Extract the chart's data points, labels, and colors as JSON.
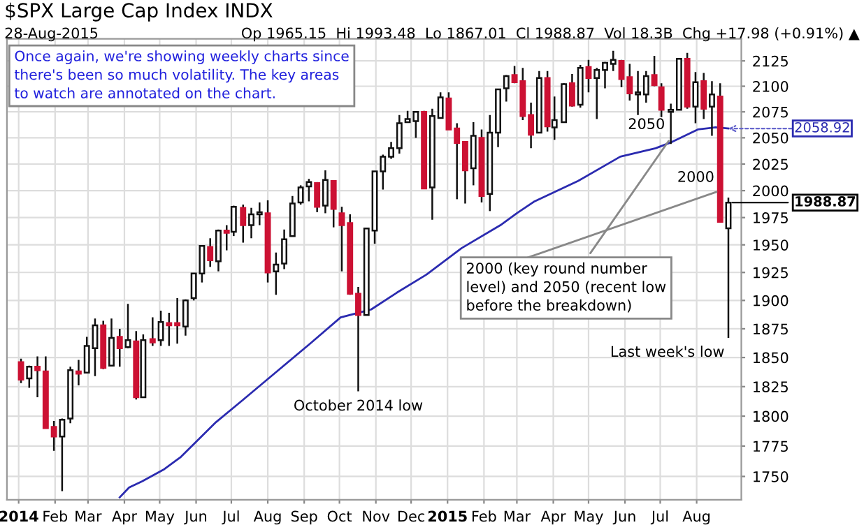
{
  "chart_data": {
    "type": "candlestick",
    "title": "$SPX Large Cap Index INDX",
    "subtitle": "28-Aug-2015",
    "annotations": [
      "Op 1965.15  Hi 1993.48  Lo 1867.01  Cl 1988.87  Vol 18.3B  Chg +17.98 (+0.91%) ▲",
      "Once again, we're showing weekly charts since\nthere's been so much volatility. The key areas\nto watch are annotated on the chart.",
      {
        "text": "2000 (key round number\nlevel) and 2050 (recent low\nbefore the breakdown)",
        "x": "2015-07-10",
        "y": 2050
      },
      {
        "text": "October 2014 low",
        "x": "2014-10-17",
        "y": 1820.7
      },
      {
        "text": "Last week's low",
        "x": "2015-08-28",
        "y": 1867.01
      },
      {
        "text": "2050",
        "x": "2015-07-10",
        "y": 2050
      },
      {
        "text": "2000",
        "x": "2015-08-21",
        "y": 2000
      },
      {
        "text": "2058.92",
        "x": "2015-08-28",
        "y": 2058.92
      },
      {
        "text": "1988.87",
        "x": "2015-08-28",
        "y": 1988.87
      }
    ],
    "x": [
      "2014-01-03",
      "2014-01-10",
      "2014-01-17",
      "2014-01-24",
      "2014-01-31",
      "2014-02-07",
      "2014-02-14",
      "2014-02-21",
      "2014-02-28",
      "2014-03-07",
      "2014-03-14",
      "2014-03-21",
      "2014-03-28",
      "2014-04-04",
      "2014-04-11",
      "2014-04-17",
      "2014-04-25",
      "2014-05-02",
      "2014-05-09",
      "2014-05-16",
      "2014-05-23",
      "2014-05-30",
      "2014-06-06",
      "2014-06-13",
      "2014-06-20",
      "2014-06-27",
      "2014-07-03",
      "2014-07-11",
      "2014-07-18",
      "2014-07-25",
      "2014-08-01",
      "2014-08-08",
      "2014-08-15",
      "2014-08-22",
      "2014-08-29",
      "2014-09-05",
      "2014-09-12",
      "2014-09-19",
      "2014-09-26",
      "2014-10-03",
      "2014-10-10",
      "2014-10-17",
      "2014-10-24",
      "2014-10-31",
      "2014-11-07",
      "2014-11-14",
      "2014-11-21",
      "2014-11-28",
      "2014-12-05",
      "2014-12-12",
      "2014-12-19",
      "2014-12-26",
      "2015-01-02",
      "2015-01-09",
      "2015-01-16",
      "2015-01-23",
      "2015-01-30",
      "2015-02-06",
      "2015-02-13",
      "2015-02-20",
      "2015-02-27",
      "2015-03-06",
      "2015-03-13",
      "2015-03-20",
      "2015-03-27",
      "2015-04-02",
      "2015-04-10",
      "2015-04-17",
      "2015-04-24",
      "2015-05-01",
      "2015-05-08",
      "2015-05-15",
      "2015-05-22",
      "2015-05-29",
      "2015-06-05",
      "2015-06-12",
      "2015-06-19",
      "2015-06-26",
      "2015-07-02",
      "2015-07-10",
      "2015-07-17",
      "2015-07-24",
      "2015-07-31",
      "2015-08-07",
      "2015-08-14",
      "2015-08-21",
      "2015-08-28"
    ],
    "ohlc": [
      [
        1846,
        1849,
        1828,
        1831
      ],
      [
        1832,
        1843,
        1824,
        1842
      ],
      [
        1842,
        1851,
        1816,
        1839
      ],
      [
        1838,
        1851,
        1790,
        1790
      ],
      [
        1791,
        1796,
        1771,
        1783
      ],
      [
        1783,
        1798,
        1738,
        1797
      ],
      [
        1798,
        1842,
        1794,
        1839
      ],
      [
        1838,
        1848,
        1826,
        1836
      ],
      [
        1837,
        1868,
        1837,
        1860
      ],
      [
        1858,
        1884,
        1834,
        1878
      ],
      [
        1878,
        1882,
        1840,
        1841
      ],
      [
        1843,
        1884,
        1843,
        1867
      ],
      [
        1868,
        1875,
        1842,
        1858
      ],
      [
        1859,
        1897,
        1858,
        1865
      ],
      [
        1864,
        1873,
        1814,
        1816
      ],
      [
        1816,
        1870,
        1816,
        1865
      ],
      [
        1866,
        1885,
        1860,
        1863
      ],
      [
        1865,
        1891,
        1860,
        1881
      ],
      [
        1880,
        1889,
        1860,
        1878
      ],
      [
        1880,
        1902,
        1862,
        1878
      ],
      [
        1877,
        1901,
        1869,
        1900
      ],
      [
        1902,
        1924,
        1900,
        1924
      ],
      [
        1924,
        1949,
        1916,
        1949
      ],
      [
        1948,
        1956,
        1930,
        1936
      ],
      [
        1935,
        1964,
        1926,
        1963
      ],
      [
        1963,
        1968,
        1945,
        1961
      ],
      [
        1962,
        1986,
        1958,
        1985
      ],
      [
        1984,
        1987,
        1952,
        1968
      ],
      [
        1968,
        1984,
        1956,
        1978
      ],
      [
        1978,
        1989,
        1968,
        1980
      ],
      [
        1979,
        1991,
        1916,
        1925
      ],
      [
        1926,
        1943,
        1905,
        1932
      ],
      [
        1933,
        1964,
        1928,
        1955
      ],
      [
        1958,
        1995,
        1958,
        1988
      ],
      [
        1989,
        2005,
        1987,
        2003
      ],
      [
        2004,
        2011,
        1990,
        2008
      ],
      [
        2007,
        2008,
        1980,
        1985
      ],
      [
        1986,
        2019,
        1979,
        2010
      ],
      [
        2009,
        2009,
        1966,
        1983
      ],
      [
        1979,
        1985,
        1926,
        1968
      ],
      [
        1970,
        1978,
        1905,
        1906
      ],
      [
        1906,
        1912,
        1821,
        1887
      ],
      [
        1887,
        1965,
        1887,
        1965
      ],
      [
        1963,
        2018,
        1951,
        2018
      ],
      [
        2018,
        2034,
        2001,
        2032
      ],
      [
        2032,
        2046,
        2030,
        2040
      ],
      [
        2040,
        2072,
        2035,
        2064
      ],
      [
        2065,
        2076,
        2065,
        2068
      ],
      [
        2066,
        2075,
        2050,
        2075
      ],
      [
        2075,
        2076,
        2002,
        2002
      ],
      [
        2003,
        2078,
        1973,
        2071
      ],
      [
        2069,
        2094,
        2069,
        2089
      ],
      [
        2088,
        2094,
        2058,
        2058
      ],
      [
        2059,
        2064,
        1992,
        2045
      ],
      [
        2046,
        2046,
        1988,
        2019
      ],
      [
        2021,
        2065,
        2005,
        2052
      ],
      [
        2050,
        2058,
        1989,
        1995
      ],
      [
        1997,
        2072,
        1981,
        2055
      ],
      [
        2055,
        2097,
        2041,
        2097
      ],
      [
        2098,
        2111,
        2085,
        2110
      ],
      [
        2111,
        2120,
        2103,
        2104
      ],
      [
        2105,
        2118,
        2067,
        2071
      ],
      [
        2072,
        2084,
        2040,
        2053
      ],
      [
        2055,
        2115,
        2055,
        2108
      ],
      [
        2108,
        2115,
        2056,
        2061
      ],
      [
        2060,
        2090,
        2048,
        2067
      ],
      [
        2065,
        2103,
        2065,
        2102
      ],
      [
        2103,
        2112,
        2080,
        2081
      ],
      [
        2082,
        2121,
        2079,
        2118
      ],
      [
        2119,
        2126,
        2094,
        2108
      ],
      [
        2108,
        2118,
        2068,
        2116
      ],
      [
        2116,
        2124,
        2098,
        2123
      ],
      [
        2122,
        2135,
        2115,
        2126
      ],
      [
        2125,
        2126,
        2099,
        2107
      ],
      [
        2109,
        2122,
        2086,
        2093
      ],
      [
        2092,
        2115,
        2072,
        2094
      ],
      [
        2092,
        2115,
        2084,
        2110
      ],
      [
        2111,
        2130,
        2100,
        2101
      ],
      [
        2099,
        2103,
        2057,
        2077
      ],
      [
        2075,
        2083,
        2044,
        2077
      ],
      [
        2077,
        2128,
        2077,
        2127
      ],
      [
        2127,
        2133,
        2078,
        2080
      ],
      [
        2080,
        2114,
        2064,
        2104
      ],
      [
        2105,
        2113,
        2068,
        2078
      ],
      [
        2080,
        2105,
        2052,
        2092
      ],
      [
        2090,
        2103,
        1971,
        1971
      ],
      [
        1965.15,
        1993.48,
        1867.01,
        1988.87
      ]
    ],
    "colors": [
      "#cc1133",
      "#ffffff",
      "#cc1133",
      "#cc1133",
      "#cc1133",
      "#ffffff",
      "#ffffff",
      "#cc1133",
      "#ffffff",
      "#ffffff",
      "#cc1133",
      "#ffffff",
      "#cc1133",
      "#ffffff",
      "#cc1133",
      "#ffffff",
      "#cc1133",
      "#ffffff",
      "#cc1133",
      "#cc1133",
      "#ffffff",
      "#ffffff",
      "#ffffff",
      "#cc1133",
      "#ffffff",
      "#cc1133",
      "#ffffff",
      "#cc1133",
      "#ffffff",
      "#ffffff",
      "#cc1133",
      "#ffffff",
      "#ffffff",
      "#ffffff",
      "#ffffff",
      "#ffffff",
      "#cc1133",
      "#ffffff",
      "#cc1133",
      "#cc1133",
      "#cc1133",
      "#cc1133",
      "#ffffff",
      "#ffffff",
      "#ffffff",
      "#ffffff",
      "#ffffff",
      "#ffffff",
      "#ffffff",
      "#cc1133",
      "#ffffff",
      "#ffffff",
      "#cc1133",
      "#cc1133",
      "#cc1133",
      "#ffffff",
      "#cc1133",
      "#ffffff",
      "#ffffff",
      "#ffffff",
      "#cc1133",
      "#cc1133",
      "#cc1133",
      "#ffffff",
      "#cc1133",
      "#ffffff",
      "#ffffff",
      "#cc1133",
      "#ffffff",
      "#cc1133",
      "#ffffff",
      "#ffffff",
      "#ffffff",
      "#cc1133",
      "#cc1133",
      "#ffffff",
      "#ffffff",
      "#cc1133",
      "#cc1133",
      "#ffffff",
      "#ffffff",
      "#cc1133",
      "#ffffff",
      "#cc1133",
      "#ffffff",
      "#cc1133",
      "#ffffff"
    ],
    "series": [
      {
        "type": "line",
        "color": "#2b2bb0",
        "x": [
          "2014-03-28",
          "2014-04-05",
          "2014-04-16",
          "2014-05-05",
          "2014-05-19",
          "2014-06-18",
          "2014-07-10",
          "2014-08-04",
          "2014-09-06",
          "2014-10-02",
          "2014-10-28",
          "2014-11-19",
          "2014-12-14",
          "2015-01-13",
          "2015-02-15",
          "2015-03-01",
          "2015-03-16",
          "2015-04-22",
          "2015-05-28",
          "2015-06-27",
          "2015-07-11",
          "2015-08-02",
          "2015-08-17",
          "2015-08-28"
        ],
        "values": [
          1733,
          1741,
          1746,
          1756,
          1766,
          1795,
          1813,
          1834,
          1862,
          1885,
          1892,
          1907,
          1923,
          1947,
          1968,
          1979,
          1990,
          2009,
          2032,
          2040,
          2046,
          2058,
          2060,
          2058.92
        ]
      }
    ],
    "log": true,
    "xlim": [
      "2013-12-22",
      "2015-09-08"
    ],
    "xticks": [
      {
        "value": "2014-01-01",
        "label": "2014"
      },
      {
        "value": "2014-02-01",
        "label": "Feb"
      },
      {
        "value": "2014-03-01",
        "label": "Mar"
      },
      {
        "value": "2014-04-01",
        "label": "Apr"
      },
      {
        "value": "2014-05-01",
        "label": "May"
      },
      {
        "value": "2014-06-01",
        "label": "Jun"
      },
      {
        "value": "2014-07-01",
        "label": "Jul"
      },
      {
        "value": "2014-08-01",
        "label": "Aug"
      },
      {
        "value": "2014-09-01",
        "label": "Sep"
      },
      {
        "value": "2014-10-01",
        "label": "Oct"
      },
      {
        "value": "2014-11-01",
        "label": "Nov"
      },
      {
        "value": "2014-12-01",
        "label": "Dec"
      },
      {
        "value": "2015-01-01",
        "label": "2015"
      },
      {
        "value": "2015-02-01",
        "label": "Feb"
      },
      {
        "value": "2015-03-01",
        "label": "Mar"
      },
      {
        "value": "2015-04-01",
        "label": "Apr"
      },
      {
        "value": "2015-05-01",
        "label": "May"
      },
      {
        "value": "2015-06-01",
        "label": "Jun"
      },
      {
        "value": "2015-07-01",
        "label": "Jul"
      },
      {
        "value": "2015-08-01",
        "label": "Aug"
      }
    ],
    "ylim": [
      1731,
      2147
    ],
    "yticks": [
      1750,
      1775,
      1800,
      1825,
      1850,
      1875,
      1900,
      1925,
      1950,
      1975,
      2000,
      2025,
      2050,
      2075,
      2100,
      2125
    ],
    "grid": true
  }
}
